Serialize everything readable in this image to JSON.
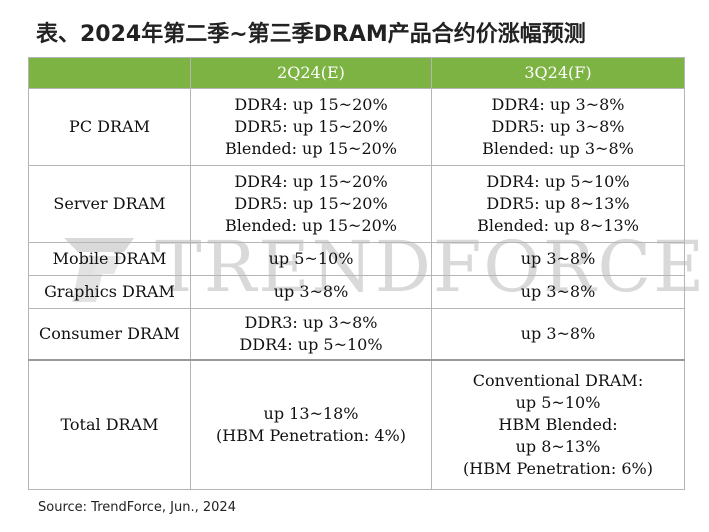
{
  "title": "表、2024年第二季~第三季DRAM产品合约价涨幅预测",
  "watermark": "TRENDFORCE",
  "header": {
    "col1": "",
    "col2": "2Q24(E)",
    "col3": "3Q24(F)"
  },
  "rows": [
    {
      "label": "PC DRAM",
      "q2": [
        "DDR4: up 15~20%",
        "DDR5: up 15~20%",
        "Blended: up 15~20%"
      ],
      "q3": [
        "DDR4: up 3~8%",
        "DDR5: up 3~8%",
        "Blended: up 3~8%"
      ]
    },
    {
      "label": "Server DRAM",
      "q2": [
        "DDR4: up 15~20%",
        "DDR5: up 15~20%",
        "Blended: up 15~20%"
      ],
      "q3": [
        "DDR4: up 5~10%",
        "DDR5: up 8~13%",
        "Blended: up 8~13%"
      ]
    },
    {
      "label": "Mobile DRAM",
      "q2": [
        "up 5~10%"
      ],
      "q3": [
        "up 3~8%"
      ]
    },
    {
      "label": "Graphics DRAM",
      "q2": [
        "up 3~8%"
      ],
      "q3": [
        "up 3~8%"
      ]
    },
    {
      "label": "Consumer DRAM",
      "q2": [
        "DDR3: up 3~8%",
        "DDR4: up 5~10%"
      ],
      "q3": [
        "up 3~8%"
      ]
    },
    {
      "label": "Total DRAM",
      "q2": [
        "up 13~18%",
        "(HBM Penetration: 4%)"
      ],
      "q3": [
        "Conventional DRAM:",
        "up 5~10%",
        "HBM Blended:",
        "up 8~13%",
        "(HBM Penetration: 6%)"
      ]
    }
  ],
  "source": "Source: TrendForce, Jun., 2024",
  "colors": {
    "header_bg": "#7cb342",
    "header_text": "#ffffff",
    "border": "#b5b5b5",
    "watermark": "#d9d9d9"
  }
}
